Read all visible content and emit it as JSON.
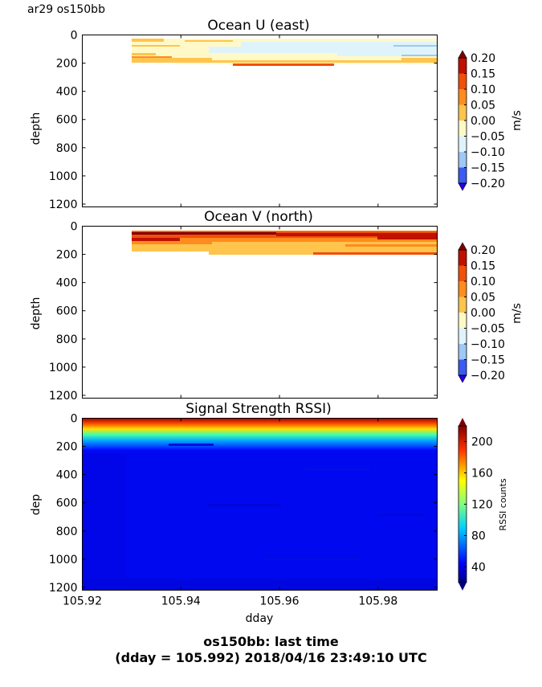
{
  "figure": {
    "corner_label": "ar29 os150bb",
    "footer_line1": "os150bb: last time",
    "footer_line2": "(dday = 105.992) 2018/04/16 23:49:10 UTC"
  },
  "chart_data": [
    {
      "type": "heatmap",
      "title": "Ocean U (east)",
      "xlabel": "",
      "ylabel": "depth",
      "xlim": [
        105.92,
        105.992
      ],
      "ylim": [
        1220,
        0
      ],
      "y_ticks": [
        0,
        200,
        400,
        600,
        800,
        1000,
        1200
      ],
      "x_ticks": [
        105.94,
        105.96,
        105.98
      ],
      "data_start_x": 105.93,
      "data_max_depth": 220,
      "colorbar": {
        "label": "m/s",
        "ticks": [
          "0.20",
          "0.15",
          "0.10",
          "0.05",
          "0.00",
          "−0.05",
          "−0.10",
          "−0.15",
          "−0.20"
        ],
        "range": [
          -0.2,
          0.2
        ]
      },
      "grid": false
    },
    {
      "type": "heatmap",
      "title": "Ocean V (north)",
      "xlabel": "",
      "ylabel": "depth",
      "xlim": [
        105.92,
        105.992
      ],
      "ylim": [
        1220,
        0
      ],
      "y_ticks": [
        0,
        200,
        400,
        600,
        800,
        1000,
        1200
      ],
      "x_ticks": [
        105.94,
        105.96,
        105.98
      ],
      "data_start_x": 105.93,
      "data_max_depth": 220,
      "colorbar": {
        "label": "m/s",
        "ticks": [
          "0.20",
          "0.15",
          "0.10",
          "0.05",
          "0.00",
          "−0.05",
          "−0.10",
          "−0.15",
          "−0.20"
        ],
        "range": [
          -0.2,
          0.2
        ]
      },
      "grid": false
    },
    {
      "type": "heatmap",
      "title": "Signal Strength RSSI)",
      "xlabel": "dday",
      "ylabel": "dep",
      "xlim": [
        105.92,
        105.992
      ],
      "ylim": [
        1220,
        0
      ],
      "y_ticks": [
        0,
        200,
        400,
        600,
        800,
        1000,
        1200
      ],
      "x_ticks": [
        105.92,
        105.94,
        105.96,
        105.98
      ],
      "x_tick_labels": [
        "105.92",
        "105.94",
        "105.96",
        "105.98"
      ],
      "data_start_x": 105.92,
      "colorbar": {
        "label": "RSSI counts",
        "ticks": [
          "200",
          "160",
          "120",
          "80",
          "40"
        ],
        "range": [
          20,
          220
        ]
      },
      "grid": false
    }
  ],
  "colors": {
    "u_v_levels": [
      "#2a00e0",
      "#3a5cf0",
      "#9ec8f5",
      "#dff3fb",
      "#fff9c8",
      "#ffc44c",
      "#ff8c1e",
      "#f0500a",
      "#c01000",
      "#800000"
    ],
    "rssi": [
      "#000080",
      "#0000ff",
      "#00ffff",
      "#ffff00",
      "#ff0000",
      "#800000"
    ]
  }
}
